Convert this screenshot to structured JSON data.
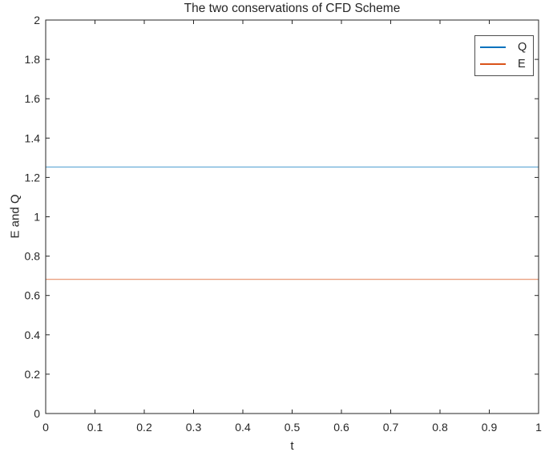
{
  "figure": {
    "background": "#ffffff",
    "axis_color": "#262626",
    "text_color": "#262626"
  },
  "chart_data": {
    "type": "line",
    "title": "The two conservations of CFD Scheme",
    "xlabel": "t",
    "ylabel": "E and Q",
    "xlim": [
      0,
      1
    ],
    "ylim": [
      0,
      2
    ],
    "xticks": [
      0,
      0.1,
      0.2,
      0.3,
      0.4,
      0.5,
      0.6,
      0.7,
      0.8,
      0.9,
      1
    ],
    "xtick_labels": [
      "0",
      "0.1",
      "0.2",
      "0.3",
      "0.4",
      "0.5",
      "0.6",
      "0.7",
      "0.8",
      "0.9",
      "1"
    ],
    "yticks": [
      0,
      0.2,
      0.4,
      0.6,
      0.8,
      1,
      1.2,
      1.4,
      1.6,
      1.8,
      2
    ],
    "ytick_labels": [
      "0",
      "0.2",
      "0.4",
      "0.6",
      "0.8",
      "1",
      "1.2",
      "1.4",
      "1.6",
      "1.8",
      "2"
    ],
    "grid": false,
    "legend_position": "top-right",
    "series": [
      {
        "name": "Q",
        "color": "#0072BD",
        "constant_value": 1.253,
        "x": [
          0,
          1
        ],
        "y": [
          1.253,
          1.253
        ]
      },
      {
        "name": "E",
        "color": "#D95319",
        "constant_value": 0.682,
        "x": [
          0,
          1
        ],
        "y": [
          0.682,
          0.682
        ]
      }
    ]
  }
}
